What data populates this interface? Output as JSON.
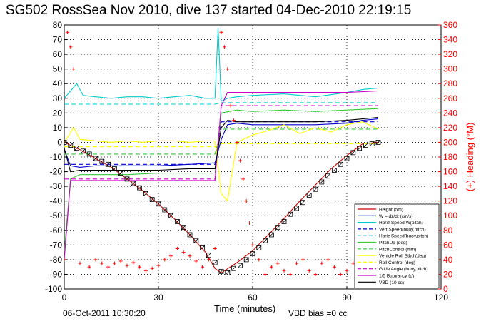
{
  "title": "SG502 RossSea Nov 2010, dive 137 started 04-Dec-2010 22:19:15",
  "footer_date": "06-Oct-2011 10:30:20",
  "footer_vbd": "VBD bias =0 cc",
  "colors": {
    "height": "#cc0000",
    "w": "#0000cc",
    "horz_hdm": "#00cccc",
    "yellow": "#ffff00",
    "green": "#33cc33",
    "magenta": "#cc00cc",
    "vbd": "#000000",
    "heading": "#ff0000",
    "grid": "#000000"
  },
  "chart_data": {
    "type": "line",
    "title": "SG502 RossSea Nov 2010, dive 137 started 04-Dec-2010 22:19:15",
    "xlabel": "Time (minutes)",
    "ylabel": "",
    "y2label": "(+) Heading (°M)",
    "xlim": [
      0,
      120
    ],
    "ylim": [
      -100,
      80
    ],
    "y2lim": [
      0,
      360
    ],
    "xticks": [
      "0",
      "30",
      "60",
      "90",
      "120"
    ],
    "yticks": [
      "80",
      "70",
      "60",
      "50",
      "40",
      "30",
      "20",
      "10",
      "0",
      "-10",
      "-20",
      "-30",
      "-40",
      "-50",
      "-60",
      "-70",
      "-80",
      "-90",
      "-100"
    ],
    "y2ticks": [
      "360",
      "340",
      "320",
      "300",
      "280",
      "260",
      "240",
      "220",
      "200",
      "180",
      "160",
      "140",
      "120",
      "100",
      "80",
      "60",
      "40",
      "20",
      "0"
    ],
    "grid": true,
    "legend_position": "lower-right",
    "series": [
      {
        "name": "Height (5m)",
        "color_key": "height",
        "style": "solid",
        "x": [
          0,
          5,
          10,
          15,
          20,
          25,
          30,
          35,
          40,
          45,
          48,
          50,
          55,
          60,
          65,
          70,
          75,
          80,
          85,
          90,
          95,
          100
        ],
        "y": [
          0,
          -5,
          -11,
          -17,
          -25,
          -33,
          -42,
          -52,
          -63,
          -75,
          -86,
          -89,
          -82,
          -74,
          -63,
          -52,
          -40,
          -29,
          -18,
          -9,
          -1,
          0
        ]
      },
      {
        "name": "W = dz/dt (cm/s)",
        "color_key": "w",
        "style": "solid",
        "x": [
          0,
          2,
          5,
          10,
          20,
          30,
          40,
          48,
          50,
          52,
          55,
          60,
          70,
          80,
          90,
          95,
          100
        ],
        "y": [
          -5,
          -16,
          -17,
          -16,
          -16,
          -16,
          -15,
          -14,
          2,
          12,
          13,
          12,
          12,
          12,
          13,
          15,
          16
        ]
      },
      {
        "name": "Horiz Speed W(pitch)",
        "color_key": "horz_hdm",
        "style": "solid",
        "x": [
          0,
          2,
          4,
          6,
          10,
          15,
          20,
          25,
          30,
          35,
          40,
          45,
          48,
          49,
          50,
          52,
          55,
          60,
          70,
          80,
          90,
          95,
          100
        ],
        "y": [
          30,
          35,
          40,
          32,
          31,
          30,
          31,
          31,
          30,
          31,
          32,
          30,
          30,
          78,
          28,
          30,
          31,
          32,
          33,
          31,
          34,
          36,
          37
        ]
      },
      {
        "name": "Vert Speed(buoy,pitch)",
        "color_key": "w",
        "style": "dashed",
        "x": [
          0,
          48,
          50,
          100
        ],
        "y": [
          -15,
          -15,
          14,
          14
        ]
      },
      {
        "name": "Horiz Speed(buoy,pitch)",
        "color_key": "horz_hdm",
        "style": "dashed",
        "x": [
          0,
          48,
          50,
          100
        ],
        "y": [
          26,
          26,
          27,
          27
        ]
      },
      {
        "name": "PitchUp (deg)",
        "color_key": "green",
        "style": "solid",
        "x": [
          0,
          2,
          5,
          10,
          20,
          30,
          40,
          48,
          50,
          55,
          60,
          70,
          80,
          90,
          100
        ],
        "y": [
          -75,
          -25,
          -22,
          -22,
          -22,
          -21,
          -21,
          -21,
          20,
          22,
          21,
          22,
          21,
          22,
          23
        ]
      },
      {
        "name": "PitchControl (mm)",
        "color_key": "green",
        "style": "dashed",
        "x": [
          0,
          48,
          50,
          100
        ],
        "y": [
          -8,
          -8,
          9,
          9
        ]
      },
      {
        "name": "Vehicle Roll Stbd (deg)",
        "color_key": "yellow",
        "style": "solid",
        "x": [
          0,
          3,
          5,
          10,
          15,
          20,
          25,
          30,
          35,
          40,
          45,
          48,
          50,
          52,
          55,
          60,
          65,
          70,
          75,
          80,
          85,
          90,
          95,
          100
        ],
        "y": [
          0,
          10,
          2,
          1,
          0,
          1,
          0,
          1,
          1,
          0,
          1,
          1,
          -35,
          -40,
          0,
          5,
          8,
          12,
          6,
          10,
          7,
          12,
          14,
          9
        ]
      },
      {
        "name": "Roll Control (deg)",
        "color_key": "yellow",
        "style": "dashed",
        "x": [
          0,
          48,
          50,
          100
        ],
        "y": [
          -3,
          -3,
          -1,
          -1
        ]
      },
      {
        "name": "Glide Angle (buoy,pitch)",
        "color_key": "magenta",
        "style": "dashed",
        "x": [
          0,
          48,
          50,
          100
        ],
        "y": [
          -25,
          -25,
          25,
          25
        ]
      },
      {
        "name": "1/5 Buoyancy (g)",
        "color_key": "magenta",
        "style": "solid",
        "x": [
          0,
          2,
          4,
          10,
          20,
          30,
          40,
          48,
          50,
          52,
          60,
          70,
          80,
          90,
          100
        ],
        "y": [
          -80,
          -26,
          -26,
          -26,
          -26,
          -26,
          -26,
          -26,
          25,
          34,
          34,
          34,
          34,
          34,
          35
        ]
      },
      {
        "name": "VBD (10 cc)",
        "color_key": "vbd",
        "style": "solid",
        "x": [
          0,
          2,
          5,
          10,
          20,
          30,
          40,
          48,
          50,
          52,
          55,
          60,
          70,
          80,
          90,
          95,
          100
        ],
        "y": [
          -4,
          -20,
          -19,
          -19,
          -19,
          -19,
          -18,
          -18,
          10,
          15,
          14,
          14,
          14,
          14,
          15,
          16,
          17
        ]
      }
    ],
    "markers": {
      "name": "Height (5m)",
      "x": [
        0,
        2,
        4,
        6,
        8,
        10,
        12,
        14,
        16,
        18,
        20,
        22,
        24,
        26,
        28,
        30,
        32,
        34,
        36,
        38,
        40,
        42,
        44,
        46,
        48,
        50,
        52,
        54,
        56,
        58,
        60,
        62,
        64,
        66,
        68,
        70,
        72,
        74,
        76,
        78,
        80,
        82,
        84,
        86,
        88,
        90,
        92,
        94,
        96,
        98,
        100
      ],
      "y": [
        0,
        -2,
        -4,
        -6,
        -8,
        -11,
        -13,
        -15,
        -18,
        -21,
        -25,
        -28,
        -31,
        -35,
        -39,
        -42,
        -46,
        -50,
        -54,
        -58,
        -63,
        -67,
        -72,
        -77,
        -82,
        -88,
        -89,
        -86,
        -84,
        -80,
        -76,
        -72,
        -67,
        -63,
        -58,
        -54,
        -49,
        -45,
        -41,
        -36,
        -32,
        -27,
        -23,
        -19,
        -15,
        -11,
        -7,
        -4,
        -2,
        -1,
        0
      ]
    },
    "heading_points": {
      "name": "(+) Heading (°M)",
      "axis": "right",
      "x": [
        0,
        1,
        2,
        3,
        5,
        8,
        10,
        12,
        14,
        16,
        18,
        20,
        22,
        24,
        26,
        28,
        30,
        32,
        34,
        36,
        38,
        40,
        42,
        44,
        46,
        48,
        50,
        51,
        52,
        53,
        54,
        55,
        56,
        57,
        58,
        59,
        60,
        62,
        64,
        66,
        68,
        70,
        72,
        74,
        76,
        78,
        80,
        82,
        84,
        86,
        88,
        90,
        92,
        94,
        96,
        98,
        100
      ],
      "y": [
        40,
        350,
        330,
        300,
        35,
        30,
        40,
        35,
        30,
        35,
        38,
        32,
        36,
        30,
        25,
        28,
        32,
        40,
        45,
        55,
        50,
        45,
        38,
        30,
        40,
        55,
        350,
        330,
        300,
        250,
        230,
        200,
        175,
        150,
        120,
        90,
        60,
        40,
        20,
        30,
        35,
        25,
        20,
        35,
        40,
        25,
        20,
        35,
        40,
        30,
        20,
        25,
        35,
        30,
        20,
        25,
        30
      ]
    }
  },
  "legend": [
    {
      "label": "Height (5m)",
      "color_key": "height",
      "style": "solid"
    },
    {
      "label": "W = dz/dt (cm/s)",
      "color_key": "w",
      "style": "solid"
    },
    {
      "label": "Horiz Speed W(pitch)",
      "color_key": "horz_hdm",
      "style": "solid"
    },
    {
      "label": "Vert Speed(buoy,pitch)",
      "color_key": "w",
      "style": "dashed"
    },
    {
      "label": "Horiz Speed(buoy,pitch)",
      "color_key": "horz_hdm",
      "style": "dashed"
    },
    {
      "label": "PitchUp (deg)",
      "color_key": "green",
      "style": "solid"
    },
    {
      "label": "PitchControl (mm)",
      "color_key": "green",
      "style": "dashed"
    },
    {
      "label": "Vehicle Roll Stbd (deg)",
      "color_key": "yellow",
      "style": "solid"
    },
    {
      "label": "Roll Control (deg)",
      "color_key": "yellow",
      "style": "dashed"
    },
    {
      "label": "Glide Angle (buoy,pitch)",
      "color_key": "magenta",
      "style": "dashed"
    },
    {
      "label": "1/5 Buoyancy (g)",
      "color_key": "magenta",
      "style": "solid"
    },
    {
      "label": "VBD (10 cc)",
      "color_key": "vbd",
      "style": "solid"
    }
  ]
}
